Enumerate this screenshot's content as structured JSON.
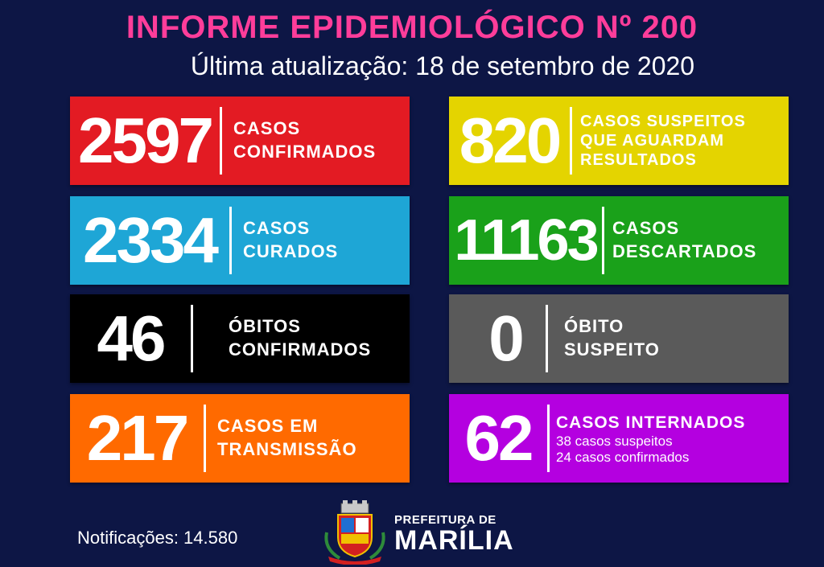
{
  "header": {
    "title": "INFORME EPIDEMIOLÓGICO Nº 200",
    "subtitle": "Última atualização: 18 de setembro de 2020"
  },
  "cards": [
    {
      "number": "2597",
      "lines": [
        "CASOS",
        "CONFIRMADOS"
      ],
      "color": "#e31b23"
    },
    {
      "number": "820",
      "lines": [
        "CASOS SUSPEITOS",
        "QUE AGUARDAM",
        "RESULTADOS"
      ],
      "color": "#e4d400"
    },
    {
      "number": "2334",
      "lines": [
        "CASOS",
        "CURADOS"
      ],
      "color": "#1ea6d6"
    },
    {
      "number": "11163",
      "lines": [
        "CASOS",
        "DESCARTADOS"
      ],
      "color": "#1aa11a"
    },
    {
      "number": "46",
      "lines": [
        "ÓBITOS",
        "CONFIRMADOS"
      ],
      "color": "#000000"
    },
    {
      "number": "0",
      "lines": [
        "ÓBITO",
        "SUSPEITO"
      ],
      "color": "#5a5a5a"
    },
    {
      "number": "217",
      "lines": [
        "CASOS EM",
        "TRANSMISSÃO"
      ],
      "color": "#ff6a00"
    },
    {
      "number": "62",
      "lines": [
        "CASOS INTERNADOS"
      ],
      "sublines": [
        "38 casos suspeitos",
        "24 casos confirmados"
      ],
      "color": "#b400e0"
    }
  ],
  "footer": {
    "notifications": "Notificações: 14.580",
    "brand_small": "PREFEITURA DE",
    "brand_big": "MARÍLIA",
    "crest_icon": "city-coat-of-arms-icon"
  },
  "colors": {
    "background": "#0d1645",
    "title": "#ff3d9a"
  }
}
